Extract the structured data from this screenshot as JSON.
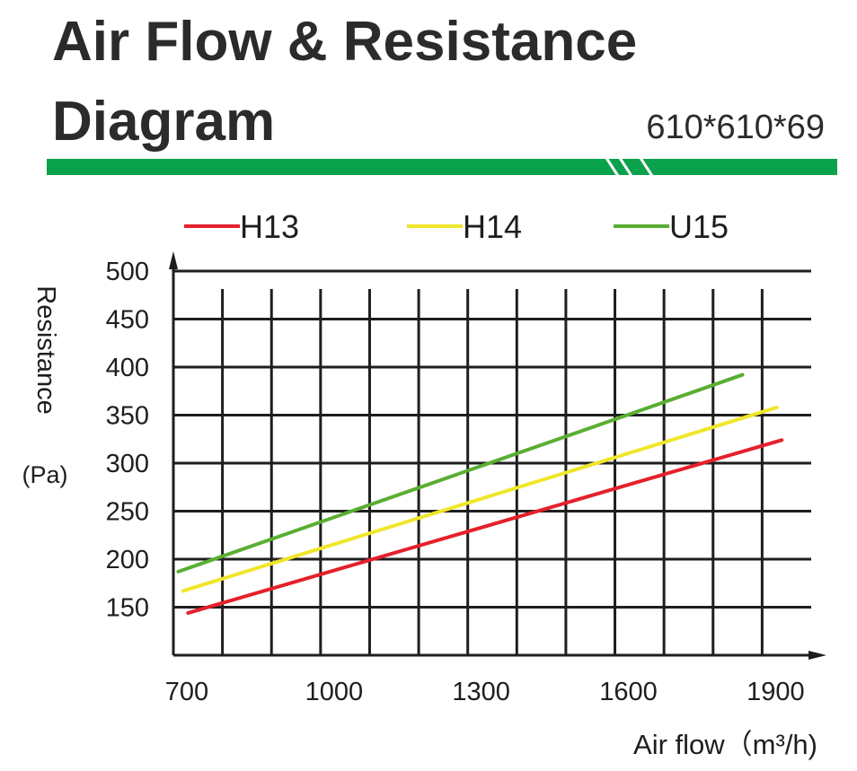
{
  "header": {
    "title_line1": "Air Flow & Resistance",
    "title_line2": "Diagram",
    "size": "610*610*69",
    "accent_color": "#0aa24a"
  },
  "chart_data": {
    "type": "line",
    "xlabel": "Air flow（m³/h)",
    "ylabel": "Resistance",
    "yunit": "(Pa)",
    "x_ticks": [
      700,
      1000,
      1300,
      1600,
      1900
    ],
    "y_ticks": [
      150,
      200,
      250,
      300,
      350,
      400,
      450,
      500
    ],
    "xlim": [
      700,
      2000
    ],
    "ylim": [
      100,
      500
    ],
    "grid": true,
    "legend_position": "top",
    "series": [
      {
        "name": "H13",
        "color": "#e5202a",
        "x": [
          730,
          1940
        ],
        "y": [
          144,
          324
        ]
      },
      {
        "name": "H14",
        "color": "#f0e62a",
        "x": [
          720,
          1930
        ],
        "y": [
          167,
          358
        ]
      },
      {
        "name": "U15",
        "color": "#5aae32",
        "x": [
          710,
          1860
        ],
        "y": [
          187,
          392
        ]
      }
    ]
  }
}
